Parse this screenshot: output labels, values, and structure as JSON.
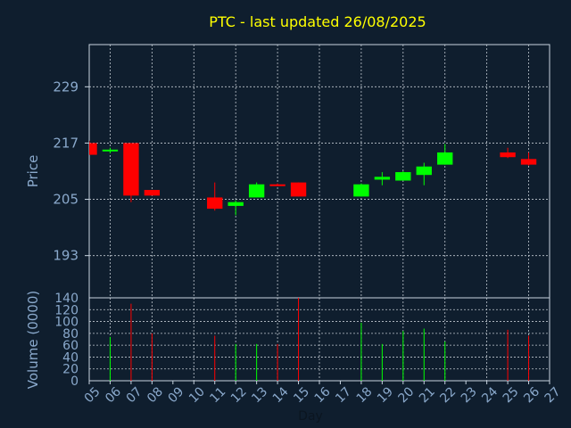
{
  "chart_data": {
    "type": "candlestick",
    "title": "PTC - last updated 26/08/2025",
    "xlabel": "Day",
    "price_panel": {
      "ylabel": "Price",
      "yticks": [
        193,
        205,
        217,
        229
      ],
      "ylim": [
        184,
        238
      ]
    },
    "volume_panel": {
      "ylabel": "Volume (0000)",
      "yticks": [
        0,
        20,
        40,
        60,
        80,
        100,
        120,
        140
      ],
      "ylim": [
        0,
        140
      ]
    },
    "x_ticks": [
      "05",
      "06",
      "07",
      "08",
      "09",
      "10",
      "11",
      "12",
      "13",
      "14",
      "15",
      "16",
      "17",
      "18",
      "19",
      "20",
      "21",
      "22",
      "23",
      "24",
      "25",
      "26",
      "27"
    ],
    "candles": [
      {
        "day": "05",
        "open": 217.0,
        "high": 217.5,
        "low": 214.5,
        "close": 214.5,
        "volume": 0
      },
      {
        "day": "06",
        "open": 215.4,
        "high": 216.0,
        "low": 214.8,
        "close": 215.6,
        "volume": 74
      },
      {
        "day": "07",
        "open": 217.0,
        "high": 217.0,
        "low": 204.4,
        "close": 205.8,
        "volume": 130
      },
      {
        "day": "08",
        "open": 207.0,
        "high": 207.0,
        "low": 205.8,
        "close": 205.8,
        "volume": 80
      },
      {
        "day": "11",
        "open": 205.4,
        "high": 208.6,
        "low": 202.6,
        "close": 203.0,
        "volume": 76
      },
      {
        "day": "12",
        "open": 203.6,
        "high": 204.8,
        "low": 201.6,
        "close": 204.4,
        "volume": 62
      },
      {
        "day": "13",
        "open": 205.4,
        "high": 208.6,
        "low": 205.4,
        "close": 208.2,
        "volume": 62
      },
      {
        "day": "14",
        "open": 208.2,
        "high": 208.4,
        "low": 207.8,
        "close": 208.0,
        "volume": 62
      },
      {
        "day": "15",
        "open": 208.6,
        "high": 208.6,
        "low": 205.6,
        "close": 205.6,
        "volume": 140
      },
      {
        "day": "18",
        "open": 205.6,
        "high": 208.4,
        "low": 205.6,
        "close": 208.2,
        "volume": 98
      },
      {
        "day": "19",
        "open": 209.2,
        "high": 210.8,
        "low": 208.0,
        "close": 209.8,
        "volume": 62
      },
      {
        "day": "20",
        "open": 209.0,
        "high": 211.0,
        "low": 209.0,
        "close": 210.8,
        "volume": 84
      },
      {
        "day": "21",
        "open": 210.2,
        "high": 212.8,
        "low": 208.0,
        "close": 212.0,
        "volume": 88
      },
      {
        "day": "22",
        "open": 212.4,
        "high": 216.8,
        "low": 212.4,
        "close": 215.0,
        "volume": 66
      },
      {
        "day": "25",
        "open": 215.0,
        "high": 216.0,
        "low": 213.8,
        "close": 214.0,
        "volume": 86
      },
      {
        "day": "26",
        "open": 213.6,
        "high": 215.0,
        "low": 212.2,
        "close": 212.4,
        "volume": 76
      }
    ],
    "grid": true,
    "colors": {
      "background": "#0f1e2e",
      "plot_border": "#c8d4e0",
      "grid": "#c0c8d0",
      "up": "#00ff00",
      "down": "#ff0000",
      "title": "#ffff00",
      "axis_text": "#8aa9cc"
    }
  }
}
